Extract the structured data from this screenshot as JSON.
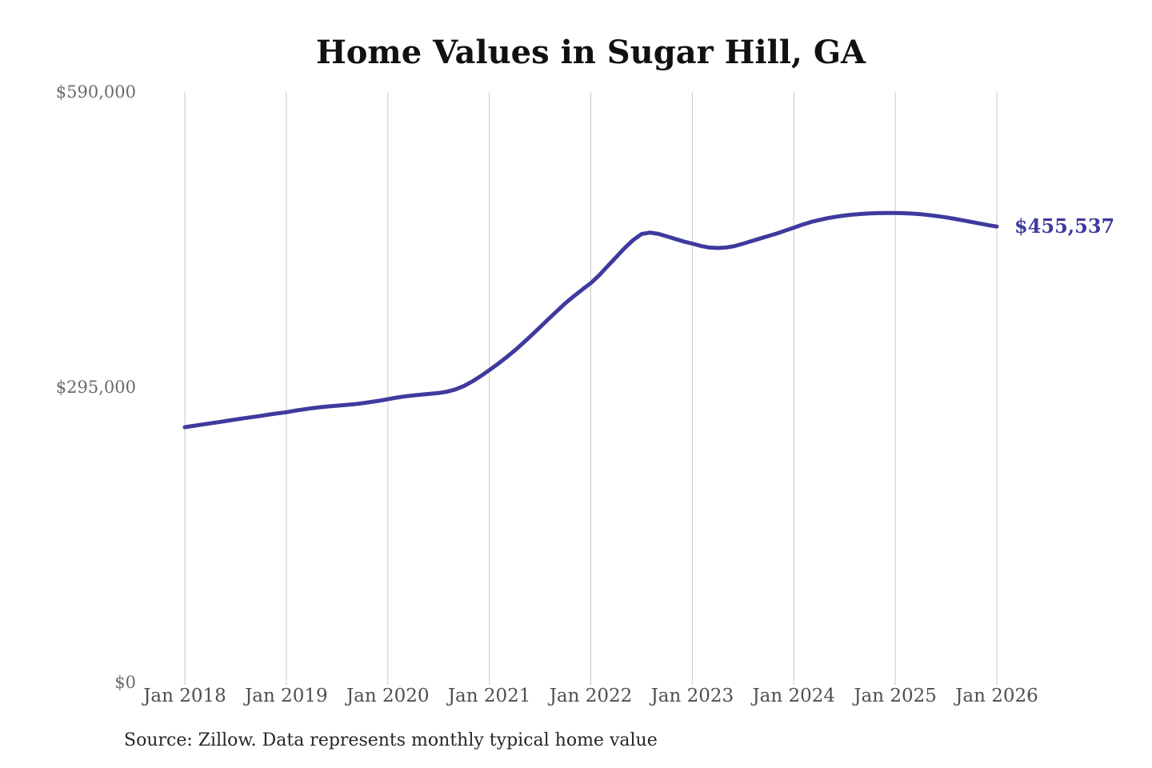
{
  "chart": {
    "title": "Home Values in Sugar Hill, GA",
    "end_label": "$455,537",
    "source": "Source: Zillow. Data represents monthly typical home value"
  },
  "chart_data": {
    "type": "line",
    "title": "Home Values in Sugar Hill, GA",
    "x_interval": "monthly",
    "x_start": "Jan 2018",
    "x_end": "Jan 2026",
    "x_tick_labels": [
      "Jan 2018",
      "Jan 2019",
      "Jan 2020",
      "Jan 2021",
      "Jan 2022",
      "Jan 2023",
      "Jan 2024",
      "Jan 2025",
      "Jan 2026"
    ],
    "y_tick_labels": [
      "$590,000",
      "$295,000",
      "$0"
    ],
    "y_tick_values": [
      590000,
      295000,
      0
    ],
    "ylim": [
      0,
      590000
    ],
    "grid": "vertical-only",
    "legend": "none",
    "last_value": 455537,
    "last_value_label": "$455,537",
    "source_note": "Source: Zillow. Data represents monthly typical home value",
    "series": [
      {
        "name": "Typical home value",
        "values": [
          255000,
          256300,
          257600,
          258900,
          260100,
          261400,
          262700,
          264000,
          265200,
          266400,
          267700,
          268900,
          270000,
          271500,
          272800,
          274000,
          275000,
          275800,
          276500,
          277200,
          278000,
          279000,
          280200,
          281500,
          283000,
          284500,
          285800,
          286800,
          287600,
          288400,
          289200,
          290500,
          292800,
          296200,
          300800,
          306200,
          312000,
          318200,
          324700,
          331600,
          339100,
          347000,
          355000,
          363100,
          371100,
          379000,
          386000,
          392600,
          399000,
          407000,
          416000,
          425000,
          434000,
          442000,
          448000,
          449500,
          448200,
          445700,
          443100,
          440600,
          438500,
          436200,
          434600,
          434100,
          434600,
          436000,
          438400,
          441000,
          443500,
          446100,
          448600,
          451500,
          454400,
          457400,
          460000,
          462100,
          463900,
          465400,
          466600,
          467500,
          468200,
          468700,
          469000,
          469100,
          469100,
          468900,
          468500,
          467900,
          467000,
          465900,
          464700,
          463300,
          461800,
          460200,
          458600,
          457000,
          455537
        ]
      }
    ]
  },
  "colors": {
    "line": "#3f3a9e",
    "end_label": "#3f3a9e",
    "grid": "#c9c9c9",
    "y_tick_text": "#6b6b6b",
    "x_tick_text": "#4f4f4f",
    "title_text": "#111111",
    "source_text": "#262626",
    "background": "#ffffff"
  }
}
